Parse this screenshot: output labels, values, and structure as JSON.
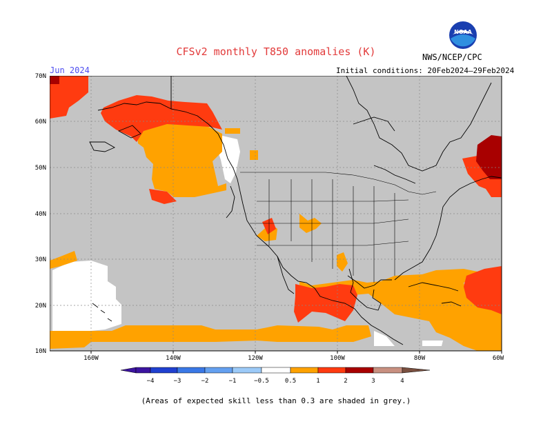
{
  "header": {
    "title": "CFSv2 monthly T850 anomalies (K)",
    "month": "Jun 2024",
    "initial_conditions": "Initial conditions: 20Feb2024–29Feb2024",
    "agency": "NWS/NCEP/CPC",
    "logo_text": "NOAA"
  },
  "map": {
    "lat_labels": [
      "70N",
      "60N",
      "50N",
      "40N",
      "30N",
      "20N",
      "10N"
    ],
    "lon_labels": [
      "160W",
      "140W",
      "120W",
      "100W",
      "80W",
      "60W"
    ],
    "extent": {
      "lon_min": -170,
      "lon_max": -60,
      "lat_min": 10,
      "lat_max": 70
    },
    "colors": {
      "grey": "#c4c4c4",
      "white": "#ffffff",
      "orange": "#ffa200",
      "red_orange": "#ff3b10",
      "dark_red": "#a80000"
    }
  },
  "legend": {
    "labels": [
      "−4",
      "−3",
      "−2",
      "−1",
      "−0.5",
      "0.5",
      "1",
      "2",
      "3",
      "4"
    ],
    "colors": [
      "#3c14a0",
      "#2040d0",
      "#3a78e6",
      "#64a0f0",
      "#9ccaf8",
      "#ffffff",
      "#ffa200",
      "#ff3b10",
      "#a80000",
      "#c89080",
      "#7a5040"
    ]
  },
  "footer": {
    "note": "(Areas of expected skill less than 0.3 are shaded in grey.)"
  }
}
